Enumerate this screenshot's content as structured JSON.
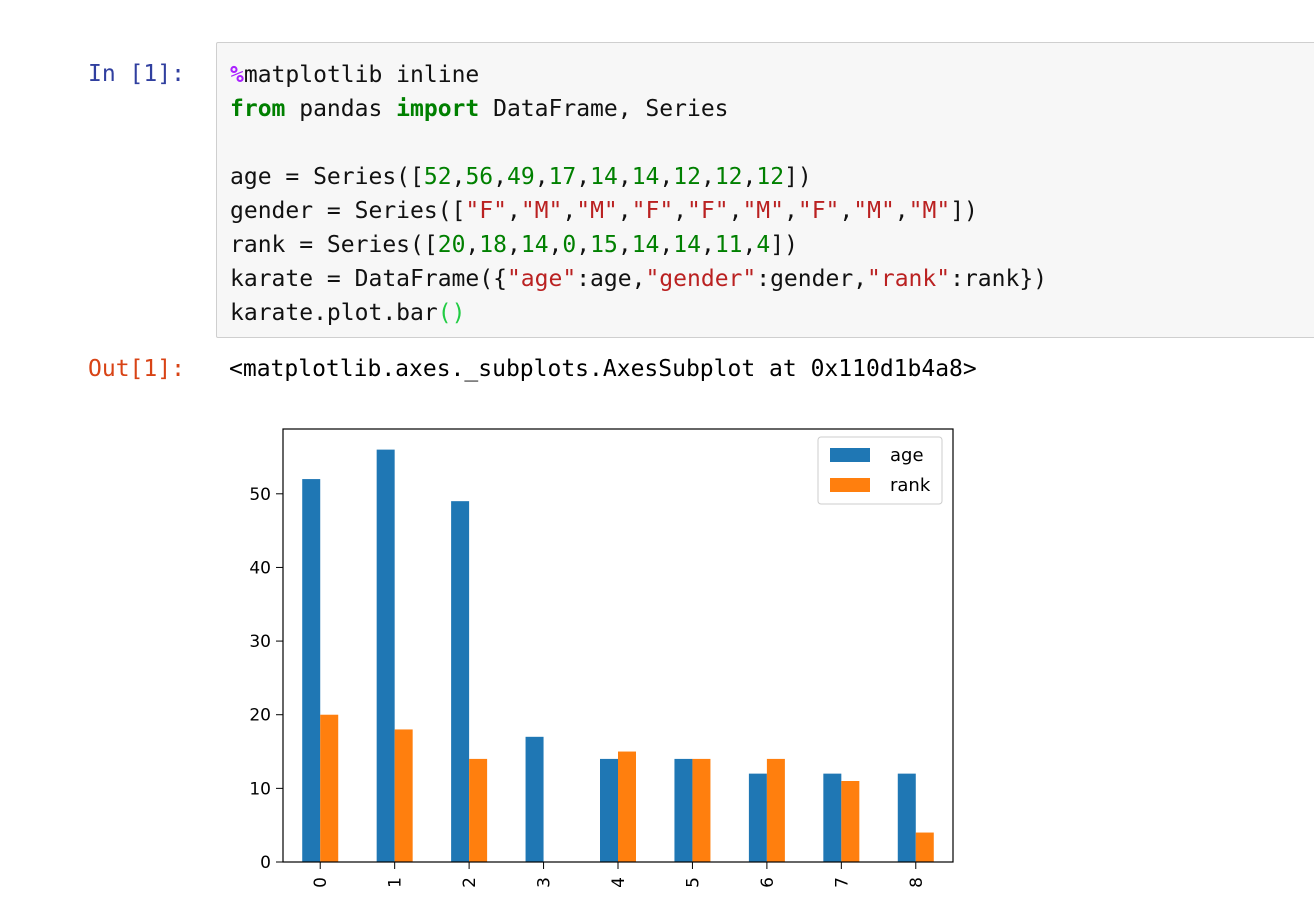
{
  "notebook": {
    "input_prompt": "In [1]:",
    "output_prompt": "Out[1]:",
    "code_lines": [
      [
        {
          "t": "%",
          "c": "magic"
        },
        {
          "t": "matplotlib inline",
          "c": ""
        }
      ],
      [
        {
          "t": "from",
          "c": "kw"
        },
        {
          "t": " pandas ",
          "c": ""
        },
        {
          "t": "import",
          "c": "kw"
        },
        {
          "t": " DataFrame, Series",
          "c": ""
        }
      ],
      [],
      [
        {
          "t": "age = Series([",
          "c": ""
        },
        {
          "t": "52",
          "c": "num"
        },
        {
          "t": ",",
          "c": ""
        },
        {
          "t": "56",
          "c": "num"
        },
        {
          "t": ",",
          "c": ""
        },
        {
          "t": "49",
          "c": "num"
        },
        {
          "t": ",",
          "c": ""
        },
        {
          "t": "17",
          "c": "num"
        },
        {
          "t": ",",
          "c": ""
        },
        {
          "t": "14",
          "c": "num"
        },
        {
          "t": ",",
          "c": ""
        },
        {
          "t": "14",
          "c": "num"
        },
        {
          "t": ",",
          "c": ""
        },
        {
          "t": "12",
          "c": "num"
        },
        {
          "t": ",",
          "c": ""
        },
        {
          "t": "12",
          "c": "num"
        },
        {
          "t": ",",
          "c": ""
        },
        {
          "t": "12",
          "c": "num"
        },
        {
          "t": "])",
          "c": ""
        }
      ],
      [
        {
          "t": "gender = Series([",
          "c": ""
        },
        {
          "t": "\"F\"",
          "c": "str"
        },
        {
          "t": ",",
          "c": ""
        },
        {
          "t": "\"M\"",
          "c": "str"
        },
        {
          "t": ",",
          "c": ""
        },
        {
          "t": "\"M\"",
          "c": "str"
        },
        {
          "t": ",",
          "c": ""
        },
        {
          "t": "\"F\"",
          "c": "str"
        },
        {
          "t": ",",
          "c": ""
        },
        {
          "t": "\"F\"",
          "c": "str"
        },
        {
          "t": ",",
          "c": ""
        },
        {
          "t": "\"M\"",
          "c": "str"
        },
        {
          "t": ",",
          "c": ""
        },
        {
          "t": "\"F\"",
          "c": "str"
        },
        {
          "t": ",",
          "c": ""
        },
        {
          "t": "\"M\"",
          "c": "str"
        },
        {
          "t": ",",
          "c": ""
        },
        {
          "t": "\"M\"",
          "c": "str"
        },
        {
          "t": "])",
          "c": ""
        }
      ],
      [
        {
          "t": "rank = Series([",
          "c": ""
        },
        {
          "t": "20",
          "c": "num"
        },
        {
          "t": ",",
          "c": ""
        },
        {
          "t": "18",
          "c": "num"
        },
        {
          "t": ",",
          "c": ""
        },
        {
          "t": "14",
          "c": "num"
        },
        {
          "t": ",",
          "c": ""
        },
        {
          "t": "0",
          "c": "num"
        },
        {
          "t": ",",
          "c": ""
        },
        {
          "t": "15",
          "c": "num"
        },
        {
          "t": ",",
          "c": ""
        },
        {
          "t": "14",
          "c": "num"
        },
        {
          "t": ",",
          "c": ""
        },
        {
          "t": "14",
          "c": "num"
        },
        {
          "t": ",",
          "c": ""
        },
        {
          "t": "11",
          "c": "num"
        },
        {
          "t": ",",
          "c": ""
        },
        {
          "t": "4",
          "c": "num"
        },
        {
          "t": "])",
          "c": ""
        }
      ],
      [
        {
          "t": "karate = DataFrame({",
          "c": ""
        },
        {
          "t": "\"age\"",
          "c": "str"
        },
        {
          "t": ":age,",
          "c": ""
        },
        {
          "t": "\"gender\"",
          "c": "str"
        },
        {
          "t": ":gender,",
          "c": ""
        },
        {
          "t": "\"rank\"",
          "c": "str"
        },
        {
          "t": ":rank})",
          "c": ""
        }
      ],
      [
        {
          "t": "karate.plot.bar",
          "c": ""
        },
        {
          "t": "()",
          "c": "paren"
        }
      ]
    ],
    "output_text": "<matplotlib.axes._subplots.AxesSubplot at 0x110d1b4a8>"
  },
  "colors": {
    "age": "#1f77b4",
    "rank": "#ff7f0e"
  },
  "chart_data": {
    "type": "bar",
    "categories": [
      "0",
      "1",
      "2",
      "3",
      "4",
      "5",
      "6",
      "7",
      "8"
    ],
    "series": [
      {
        "name": "age",
        "values": [
          52,
          56,
          49,
          17,
          14,
          14,
          12,
          12,
          12
        ]
      },
      {
        "name": "rank",
        "values": [
          20,
          18,
          14,
          0,
          15,
          14,
          14,
          11,
          4
        ]
      }
    ],
    "yticks": [
      0,
      10,
      20,
      30,
      40,
      50
    ],
    "ylim": [
      0,
      58.8
    ],
    "legend_position": "top-right",
    "grid": false
  }
}
